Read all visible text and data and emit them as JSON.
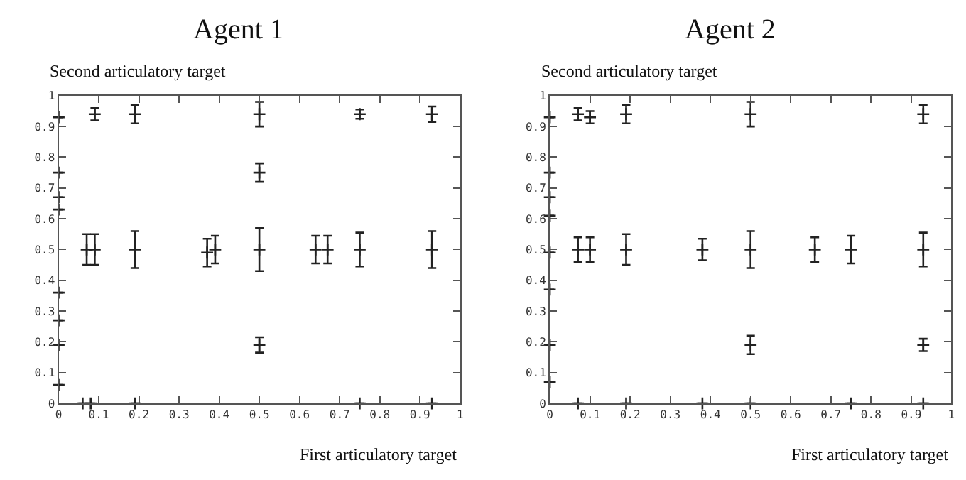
{
  "chart_data": [
    {
      "type": "scatter",
      "title": "Agent 1",
      "xlabel": "First articulatory target",
      "ylabel": "Second articulatory target",
      "color": "#222222",
      "marker": "cross",
      "x": [
        0.07,
        0.09,
        0.09,
        0.19,
        0.19,
        0.37,
        0.39,
        0.5,
        0.5,
        0.5,
        0.5,
        0.64,
        0.67,
        0.75,
        0.75,
        0.93,
        0.93,
        0,
        0,
        0,
        0,
        0,
        0,
        0,
        0,
        0.06,
        0.08,
        0.19,
        0.75,
        0.93
      ],
      "values": [
        0.5,
        0.5,
        0.94,
        0.5,
        0.94,
        0.49,
        0.5,
        0.94,
        0.75,
        0.5,
        0.19,
        0.5,
        0.5,
        0.5,
        0.94,
        0.5,
        0.94,
        0.06,
        0.19,
        0.27,
        0.36,
        0.63,
        0.67,
        0.75,
        0.93,
        0,
        0,
        0,
        0,
        0
      ],
      "errors": [
        0.05,
        0.05,
        0.02,
        0.06,
        0.03,
        0.045,
        0.045,
        0.04,
        0.03,
        0.07,
        0.025,
        0.045,
        0.045,
        0.055,
        0.015,
        0.06,
        0.025,
        null,
        null,
        null,
        null,
        null,
        null,
        null,
        null,
        null,
        null,
        null,
        null,
        null
      ],
      "xlim": [
        0,
        1
      ],
      "ylim": [
        0,
        1
      ],
      "xticks": [
        0,
        0.1,
        0.2,
        0.3,
        0.4,
        0.5,
        0.6,
        0.7,
        0.8,
        0.9,
        1
      ],
      "yticks": [
        0,
        0.1,
        0.2,
        0.3,
        0.4,
        0.5,
        0.6,
        0.7,
        0.8,
        0.9,
        1
      ]
    },
    {
      "type": "scatter",
      "title": "Agent 2",
      "xlabel": "First articulatory target",
      "ylabel": "Second articulatory target",
      "color": "#222222",
      "marker": "cross",
      "x": [
        0.07,
        0.1,
        0.07,
        0.1,
        0.19,
        0.19,
        0.38,
        0.5,
        0.5,
        0.5,
        0.66,
        0.75,
        0.93,
        0.93,
        0.93,
        0,
        0,
        0,
        0,
        0,
        0,
        0,
        0,
        0.07,
        0.19,
        0.38,
        0.5,
        0.75,
        0.93
      ],
      "values": [
        0.5,
        0.5,
        0.94,
        0.93,
        0.5,
        0.94,
        0.5,
        0.94,
        0.5,
        0.19,
        0.5,
        0.5,
        0.94,
        0.5,
        0.19,
        0.07,
        0.19,
        0.37,
        0.49,
        0.61,
        0.67,
        0.75,
        0.93,
        0,
        0,
        0,
        0,
        0,
        0
      ],
      "errors": [
        0.04,
        0.04,
        0.02,
        0.02,
        0.05,
        0.03,
        0.035,
        0.04,
        0.06,
        0.03,
        0.04,
        0.045,
        0.03,
        0.055,
        0.02,
        null,
        null,
        null,
        null,
        null,
        null,
        null,
        null,
        null,
        null,
        null,
        null,
        null,
        null
      ],
      "xlim": [
        0,
        1
      ],
      "ylim": [
        0,
        1
      ],
      "xticks": [
        0,
        0.1,
        0.2,
        0.3,
        0.4,
        0.5,
        0.6,
        0.7,
        0.8,
        0.9,
        1
      ],
      "yticks": [
        0,
        0.1,
        0.2,
        0.3,
        0.4,
        0.5,
        0.6,
        0.7,
        0.8,
        0.9,
        1
      ]
    }
  ]
}
